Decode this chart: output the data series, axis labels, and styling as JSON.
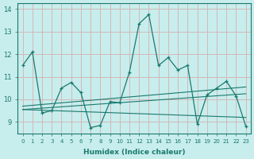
{
  "xlabel": "Humidex (Indice chaleur)",
  "background_color": "#c8eded",
  "grid_color": "#d4b8b8",
  "line_color": "#1a7a6e",
  "xlim": [
    -0.5,
    23.5
  ],
  "ylim": [
    8.5,
    14.25
  ],
  "yticks": [
    9,
    10,
    11,
    12,
    13,
    14
  ],
  "xticks": [
    0,
    1,
    2,
    3,
    4,
    5,
    6,
    7,
    8,
    9,
    10,
    11,
    12,
    13,
    14,
    15,
    16,
    17,
    18,
    19,
    20,
    21,
    22,
    23
  ],
  "main_line": {
    "x": [
      0,
      1,
      2,
      3,
      4,
      5,
      6,
      7,
      8,
      9,
      10,
      11,
      12,
      13,
      14,
      15,
      16,
      17,
      18,
      19,
      20,
      21,
      22,
      23
    ],
    "y": [
      11.5,
      12.1,
      9.4,
      9.5,
      10.5,
      10.75,
      10.3,
      8.75,
      8.85,
      9.9,
      9.85,
      11.2,
      13.35,
      13.75,
      11.5,
      11.85,
      11.3,
      11.5,
      8.9,
      10.2,
      10.5,
      10.8,
      10.15,
      8.8
    ]
  },
  "trend_lines": [
    {
      "x0": 0,
      "y0": 9.55,
      "x1": 23,
      "y1": 9.2
    },
    {
      "x0": 0,
      "y0": 9.55,
      "x1": 23,
      "y1": 10.25
    },
    {
      "x0": 0,
      "y0": 9.7,
      "x1": 23,
      "y1": 10.55
    }
  ]
}
